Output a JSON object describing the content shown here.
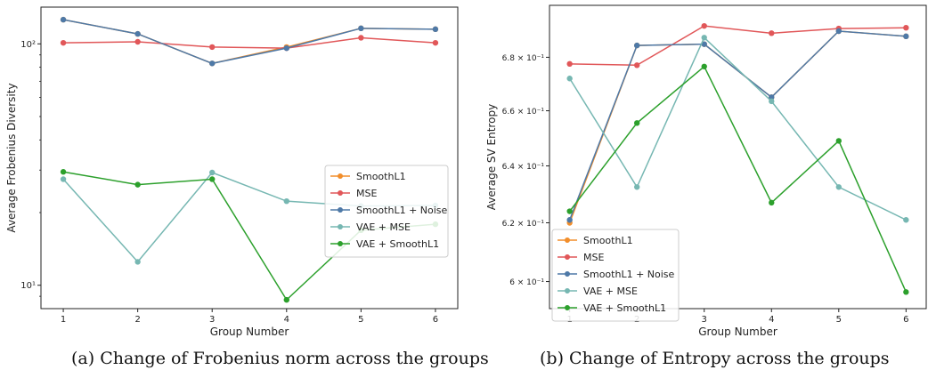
{
  "captions": {
    "a": "(a) Change of Frobenius norm across the groups",
    "b": "(b) Change of Entropy across the groups"
  },
  "chart_data": [
    {
      "type": "line",
      "xlabel": "Group Number",
      "ylabel": "Average Frobenius Diversity",
      "yscale": "log",
      "xlim": [
        0.7,
        6.3
      ],
      "ylim": [
        8.0,
        142.0
      ],
      "x": [
        1,
        2,
        3,
        4,
        5,
        6
      ],
      "x_ticks": [
        1,
        2,
        3,
        4,
        5,
        6
      ],
      "x_tick_labels": [
        "1",
        "2",
        "3",
        "4",
        "5",
        "6"
      ],
      "y_ticks": [
        10,
        100
      ],
      "y_tick_labels": [
        "10¹",
        "10²"
      ],
      "legend_position": "right",
      "series": [
        {
          "name": "SmoothL1",
          "color": "#f28e2b",
          "values": [
            126,
            110,
            83,
            97,
            116,
            115
          ]
        },
        {
          "name": "MSE",
          "color": "#e15759",
          "values": [
            101,
            102,
            97,
            96,
            106,
            101
          ]
        },
        {
          "name": "SmoothL1 + Noise",
          "color": "#4e79a7",
          "values": [
            126,
            110,
            83,
            96,
            116,
            115
          ]
        },
        {
          "name": "VAE + MSE",
          "color": "#76b7b2",
          "values": [
            27.5,
            12.5,
            29.3,
            22.3,
            21.3,
            21.4
          ]
        },
        {
          "name": "VAE + SmoothL1",
          "color": "#2ca02c",
          "values": [
            29.5,
            26.1,
            27.5,
            8.7,
            16.9,
            17.9
          ]
        }
      ]
    },
    {
      "type": "line",
      "xlabel": "Group Number",
      "ylabel": "Average SV Entropy",
      "yscale": "log",
      "xlim": [
        0.7,
        6.3
      ],
      "ylim": [
        0.591,
        0.7
      ],
      "x": [
        1,
        2,
        3,
        4,
        5,
        6
      ],
      "x_ticks": [
        1,
        2,
        3,
        4,
        5,
        6
      ],
      "x_tick_labels": [
        "1",
        "2",
        "3",
        "4",
        "5",
        "6"
      ],
      "y_ticks": [
        0.6,
        0.62,
        0.64,
        0.66,
        0.68
      ],
      "y_tick_labels": [
        "6 × 10⁻¹",
        "6.2 × 10⁻¹",
        "6.4 × 10⁻¹",
        "6.6 × 10⁻¹",
        "6.8 × 10⁻¹"
      ],
      "legend_position": "bottom-left",
      "series": [
        {
          "name": "SmoothL1",
          "color": "#f28e2b",
          "values": [
            0.62,
            0.6845,
            0.685,
            0.665,
            0.69,
            0.688
          ]
        },
        {
          "name": "MSE",
          "color": "#e15759",
          "values": [
            0.6775,
            0.677,
            0.692,
            0.6892,
            0.691,
            0.6913
          ]
        },
        {
          "name": "SmoothL1 + Noise",
          "color": "#4e79a7",
          "values": [
            0.621,
            0.6845,
            0.685,
            0.665,
            0.69,
            0.688
          ]
        },
        {
          "name": "VAE + MSE",
          "color": "#76b7b2",
          "values": [
            0.672,
            0.6325,
            0.6875,
            0.6635,
            0.6325,
            0.621
          ]
        },
        {
          "name": "VAE + SmoothL1",
          "color": "#2ca02c",
          "values": [
            0.624,
            0.6555,
            0.6765,
            0.627,
            0.649,
            0.5965
          ]
        }
      ]
    }
  ]
}
